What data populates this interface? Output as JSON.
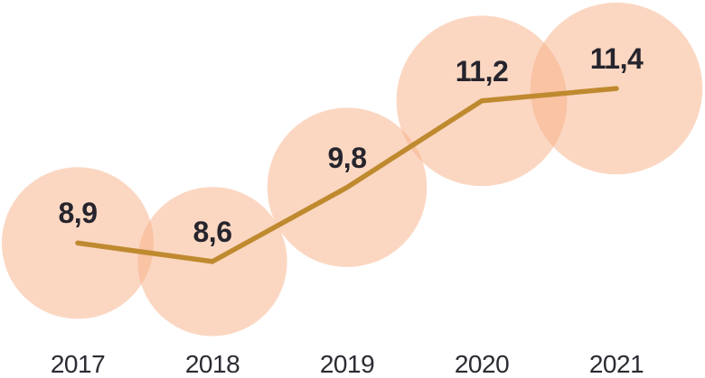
{
  "chart_data": {
    "type": "line",
    "subtype": "bubble-line-combo",
    "title": "",
    "xlabel": "",
    "ylabel": "",
    "categories": [
      "2017",
      "2018",
      "2019",
      "2020",
      "2021"
    ],
    "values": [
      8.9,
      8.6,
      9.8,
      11.2,
      11.4
    ],
    "value_labels": [
      "8,9",
      "8,6",
      "9,8",
      "11,2",
      "11,4"
    ],
    "decimal_separator": ",",
    "legend_position": "none",
    "grid": false,
    "axes_visible": false,
    "bubble_area_proportional_to_value": true,
    "colors": {
      "background": "#FFFFFF",
      "bubble_fill": "#F7AF85",
      "bubble_fill_opacity": 0.5,
      "bubble_fill_rendered_single": "#FBD7C2",
      "bubble_fill_rendered_overlap": "#F8C1A1",
      "line": "#BF8A2F",
      "value_label_text": "#26242C",
      "year_label_text": "#2B2B33"
    }
  }
}
